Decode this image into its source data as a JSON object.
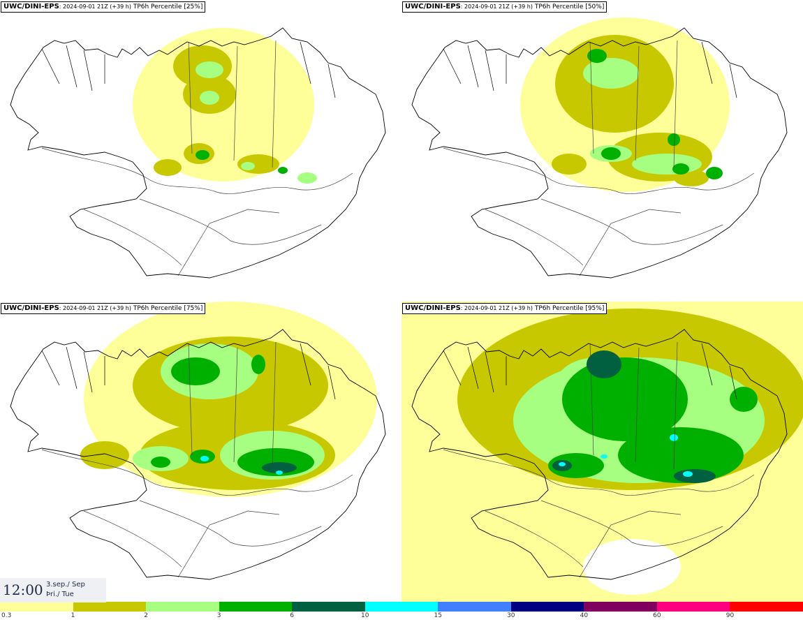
{
  "panels": [
    {
      "model": "UWC/DINI-EPS",
      "run": ": 2024-09-01 21Z (+39 h)",
      "field": " TP6h Percentile [25%]",
      "level": 0
    },
    {
      "model": "UWC/DINI-EPS",
      "run": ": 2024-09-01 21Z (+39 h)",
      "field": " TP6h Percentile [50%]",
      "level": 1
    },
    {
      "model": "UWC/DINI-EPS",
      "run": ": 2024-09-01 21Z (+39 h)",
      "field": " TP6h Percentile [75%]",
      "level": 2
    },
    {
      "model": "UWC/DINI-EPS",
      "run": ": 2024-09-01 21Z (+39 h)",
      "field": " TP6h Percentile [95%]",
      "level": 3
    }
  ],
  "valid_time": {
    "hour": "12:00",
    "date_line1": "3.sep./ Sep",
    "date_line2": "Þri./ Tue"
  },
  "legend": {
    "ticks": [
      "0.3",
      "1",
      "2",
      "3",
      "6",
      "10",
      "15",
      "30",
      "40",
      "60",
      "90"
    ],
    "colors": [
      "#ffff99",
      "#c8c800",
      "#a6ff80",
      "#00b000",
      "#006040",
      "#00ffff",
      "#4080ff",
      "#000080",
      "#800060",
      "#ff0080",
      "#ff0000"
    ]
  },
  "style": {
    "coast": "#000000",
    "roads": "#444444"
  }
}
